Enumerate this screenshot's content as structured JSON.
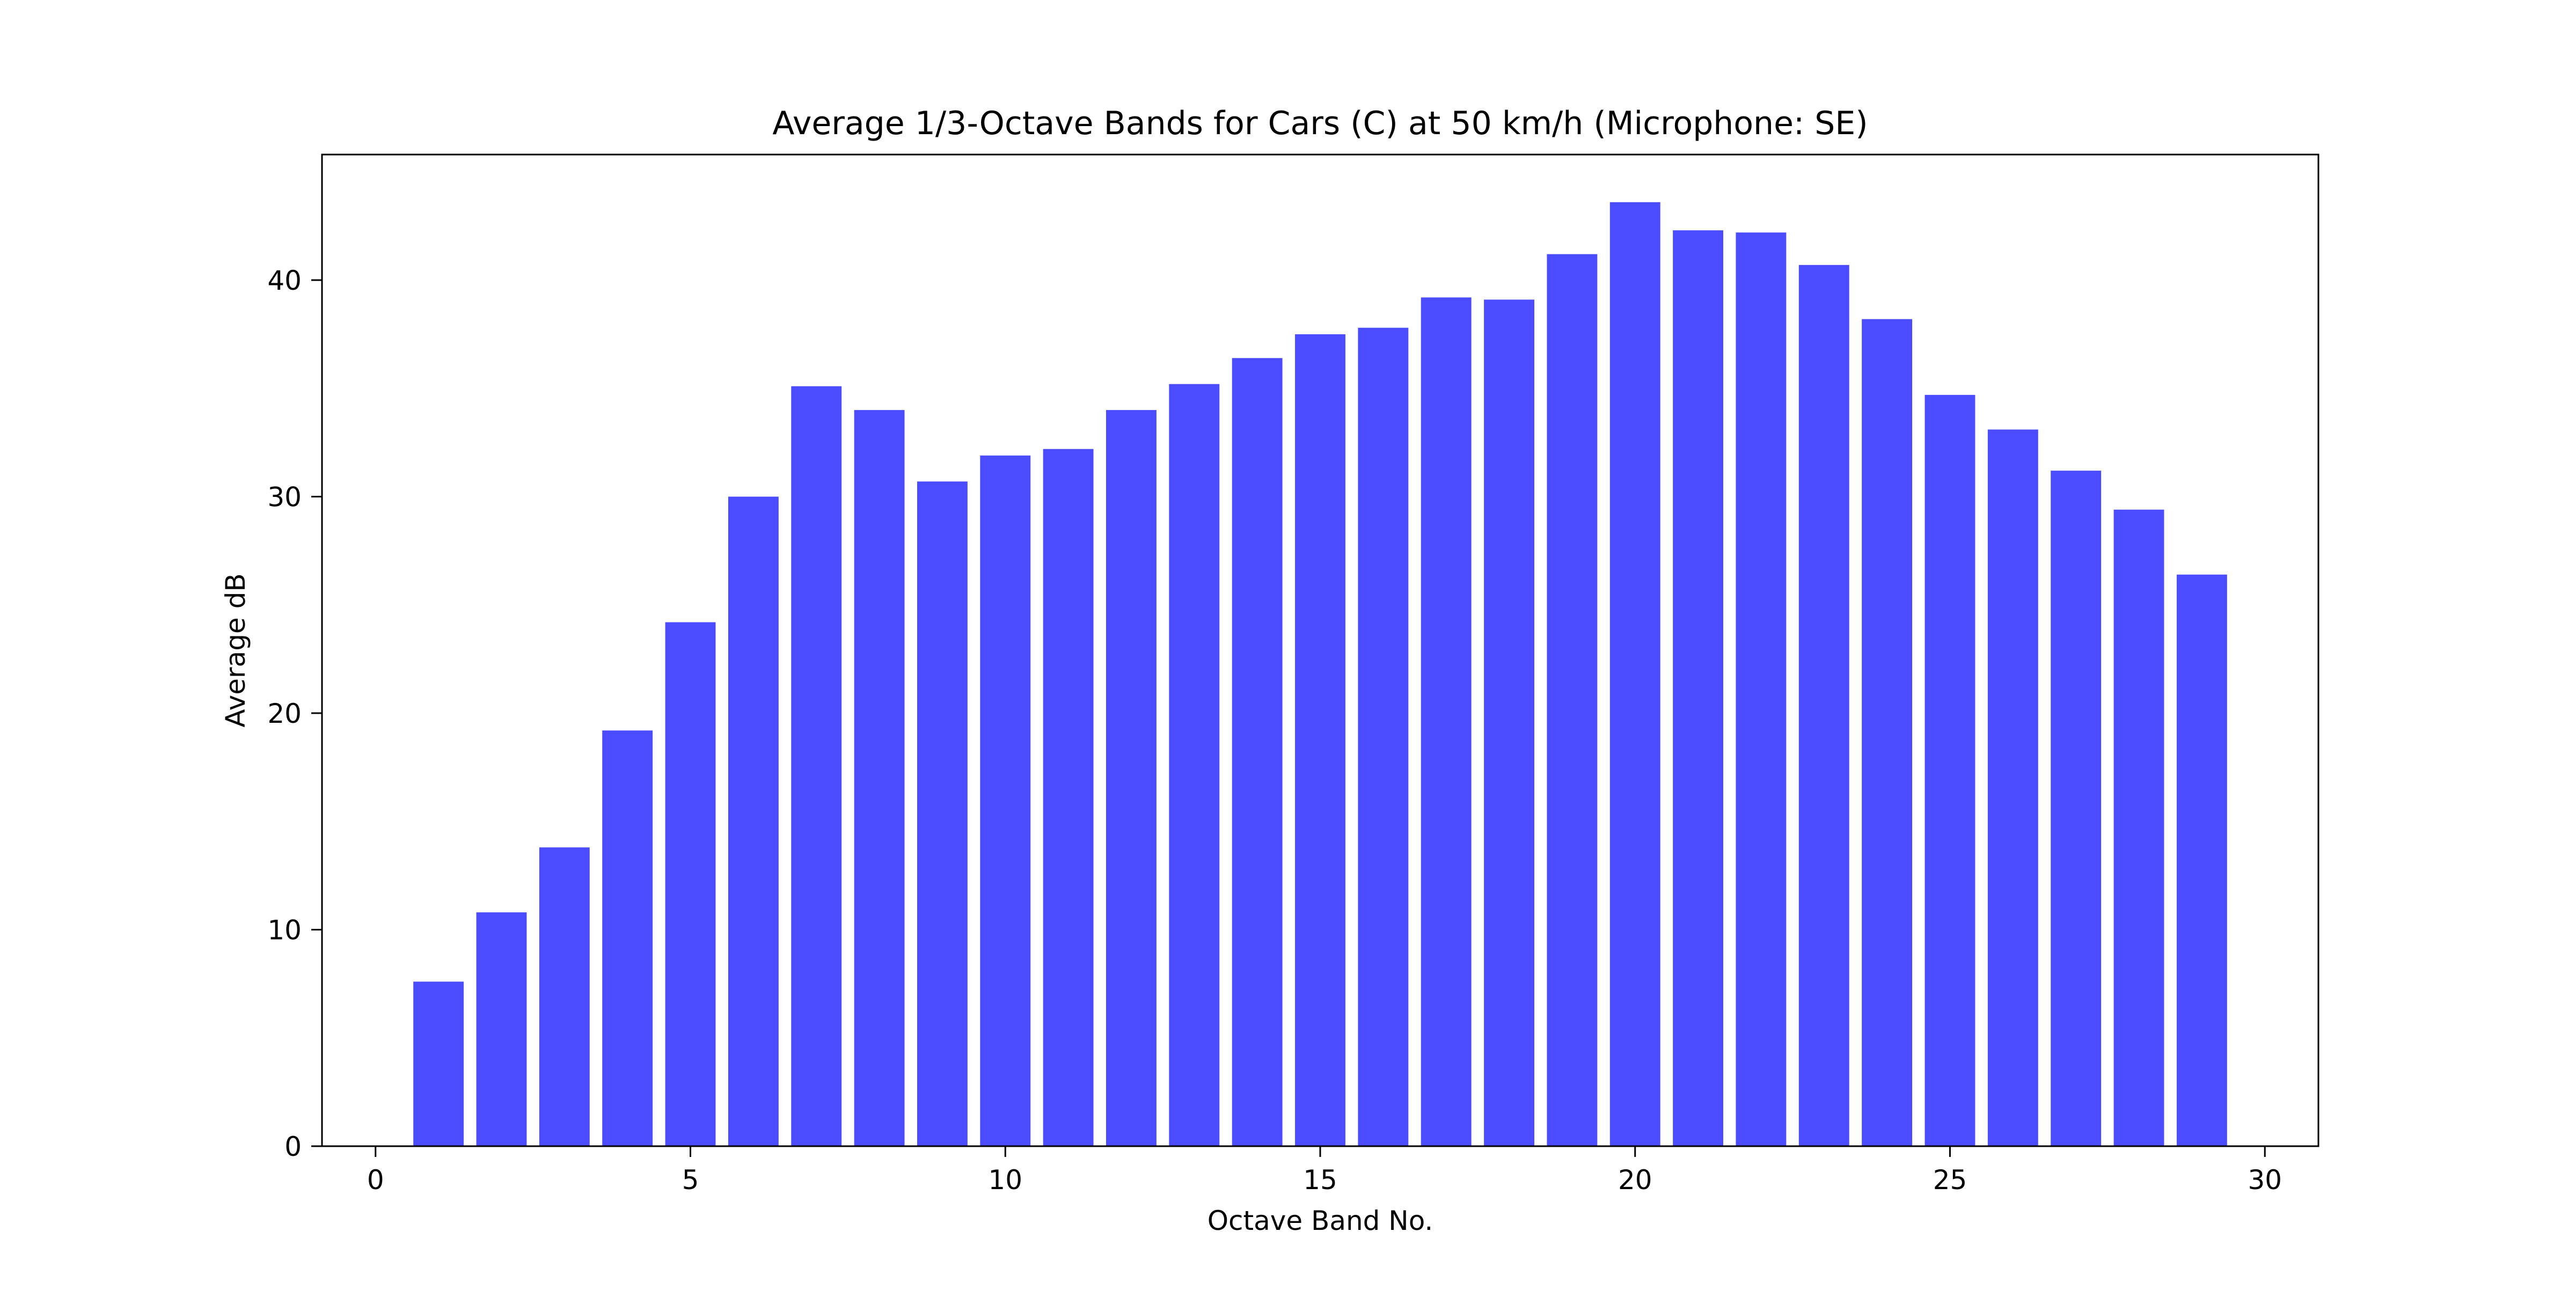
{
  "chart_data": {
    "type": "bar",
    "title": "Average 1/3-Octave Bands for Cars (C) at 50 km/h (Microphone: SE)",
    "xlabel": "Octave Band No.",
    "ylabel": "Average dB",
    "x": [
      1,
      2,
      3,
      4,
      5,
      6,
      7,
      8,
      9,
      10,
      11,
      12,
      13,
      14,
      15,
      16,
      17,
      18,
      19,
      20,
      21,
      22,
      23,
      24,
      25,
      26,
      27,
      28,
      29
    ],
    "values": [
      7.6,
      10.8,
      13.8,
      19.2,
      24.2,
      30.0,
      35.1,
      34.0,
      30.7,
      31.9,
      32.2,
      34.0,
      35.2,
      36.4,
      37.5,
      37.8,
      39.2,
      39.1,
      41.2,
      43.6,
      42.3,
      42.2,
      40.7,
      38.2,
      34.7,
      33.1,
      31.2,
      29.4,
      26.4
    ],
    "xlim": [
      -0.85,
      30.85
    ],
    "ylim": [
      0,
      45.8
    ],
    "xticks": [
      0,
      5,
      10,
      15,
      20,
      25,
      30
    ],
    "yticks": [
      0,
      10,
      20,
      30,
      40
    ],
    "bar_width": 0.8,
    "bar_color": "#4b4bff",
    "grid": false,
    "legend": "none"
  }
}
